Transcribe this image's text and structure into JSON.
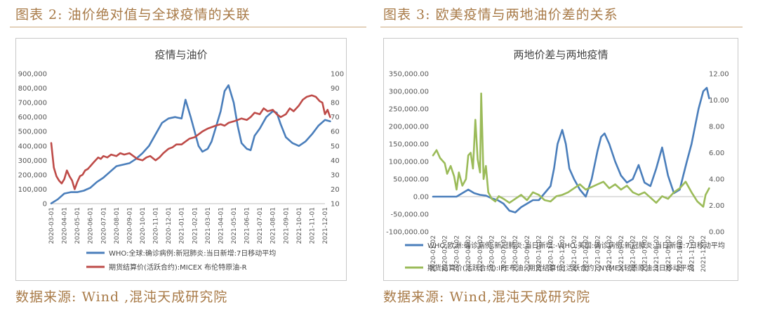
{
  "left": {
    "figure_title": "图表 2: 油价绝对值与全球疫情的关联",
    "source": "数据来源: Wind ,混沌天成研究院"
  },
  "right": {
    "figure_title": "图表 3: 欧美疫情与两地油价差的关系",
    "source": "数据来源: Wind,混沌天成研究院"
  },
  "colors": {
    "blue": "#4a7ebb",
    "red": "#be4b48",
    "green": "#9bbb59",
    "accent": "#a87a47"
  },
  "chart_data": [
    {
      "type": "line",
      "title": "疫情与油价",
      "y_left": {
        "ylim": [
          0,
          900000
        ],
        "ticks": [
          "0",
          "100,000",
          "200,000",
          "300,000",
          "400,000",
          "500,000",
          "600,000",
          "700,000",
          "800,000",
          "900,000"
        ]
      },
      "y_right": {
        "ylim": [
          10,
          100
        ],
        "ticks": [
          "10",
          "20",
          "30",
          "40",
          "50",
          "60",
          "70",
          "80",
          "90",
          "100"
        ]
      },
      "x_ticks": [
        "2020-03-01",
        "2020-04-01",
        "2020-05-01",
        "2020-06-01",
        "2020-07-01",
        "2020-08-01",
        "2020-09-01",
        "2020-10-01",
        "2020-11-01",
        "2020-12-01",
        "2021-01-01",
        "2021-02-01",
        "2021-03-01",
        "2021-04-01",
        "2021-05-01",
        "2021-06-01",
        "2021-07-01",
        "2021-08-01",
        "2021-09-01",
        "2021-10-01",
        "2021-11-01",
        "2021-12-01"
      ],
      "grid": false,
      "legend_position": "bottom",
      "series": [
        {
          "name": "WHO:全球:确诊病例:新冠肺炎:当日新增:7日移动平均",
          "axis": "left",
          "color": "#4a7ebb",
          "x": [
            0,
            0.5,
            1,
            1.5,
            2,
            2.5,
            3,
            3.5,
            4,
            4.5,
            5,
            5.5,
            6,
            6.5,
            7,
            7.5,
            8,
            8.5,
            9,
            9.5,
            10,
            10.3,
            10.7,
            11,
            11.3,
            11.6,
            12,
            12.3,
            12.6,
            13,
            13.3,
            13.6,
            14,
            14.3,
            14.6,
            15,
            15.3,
            15.6,
            16,
            16.5,
            17,
            17.3,
            17.6,
            18,
            18.5,
            19,
            19.5,
            20,
            20.5,
            21,
            21.4
          ],
          "values": [
            2000,
            30000,
            70000,
            80000,
            80000,
            90000,
            110000,
            150000,
            180000,
            220000,
            260000,
            270000,
            280000,
            310000,
            350000,
            400000,
            480000,
            560000,
            590000,
            600000,
            590000,
            720000,
            600000,
            500000,
            400000,
            360000,
            380000,
            430000,
            520000,
            640000,
            780000,
            820000,
            700000,
            540000,
            420000,
            380000,
            370000,
            470000,
            520000,
            600000,
            640000,
            630000,
            550000,
            460000,
            420000,
            400000,
            430000,
            480000,
            540000,
            580000,
            570000
          ]
        },
        {
          "name": "期货结算价(活跃合约):MICEX 布伦特原油-R",
          "axis": "right",
          "color": "#be4b48",
          "x": [
            0,
            0.2,
            0.4,
            0.6,
            0.8,
            1,
            1.2,
            1.4,
            1.6,
            1.8,
            2,
            2.2,
            2.4,
            2.6,
            2.8,
            3,
            3.2,
            3.4,
            3.6,
            3.8,
            4,
            4.3,
            4.6,
            5,
            5.3,
            5.6,
            6,
            6.3,
            6.6,
            7,
            7.3,
            7.6,
            8,
            8.3,
            8.6,
            9,
            9.3,
            9.6,
            10,
            10.3,
            10.6,
            11,
            11.3,
            11.6,
            12,
            12.3,
            12.6,
            13,
            13.3,
            13.6,
            14,
            14.3,
            14.6,
            15,
            15.3,
            15.6,
            16,
            16.3,
            16.6,
            17,
            17.3,
            17.6,
            18,
            18.3,
            18.6,
            19,
            19.3,
            19.6,
            20,
            20.3,
            20.6,
            20.8,
            21,
            21.2,
            21.4
          ],
          "values": [
            52,
            35,
            29,
            26,
            24,
            27,
            33,
            29,
            26,
            20,
            25,
            29,
            30,
            33,
            34,
            36,
            38,
            40,
            42,
            41,
            43,
            42,
            44,
            43,
            45,
            44,
            45,
            43,
            41,
            40,
            42,
            43,
            40,
            42,
            45,
            48,
            49,
            51,
            51,
            53,
            55,
            56,
            58,
            60,
            62,
            63,
            64,
            65,
            64,
            66,
            67,
            68,
            69,
            68,
            70,
            73,
            72,
            76,
            74,
            75,
            72,
            70,
            72,
            76,
            74,
            78,
            82,
            84,
            85,
            84,
            81,
            80,
            72,
            75,
            70
          ]
        }
      ]
    },
    {
      "type": "line",
      "title": "两地价差与两地疫情",
      "y_left": {
        "ylim": [
          -100000,
          350000
        ],
        "ticks": [
          "-100,000.00",
          "-50,000.00",
          "0.00",
          "50,000.00",
          "100,000.00",
          "150,000.00",
          "200,000.00",
          "250,000.00",
          "300,000.00",
          "350,000.00"
        ]
      },
      "y_right": {
        "ylim": [
          0,
          12
        ],
        "ticks": [
          "0.00",
          "2.00",
          "4.00",
          "6.00",
          "8.00",
          "10.00",
          "12.00"
        ]
      },
      "x_ticks": [
        "2020-01-02",
        "2020-02-02",
        "2020-03-02",
        "2020-04-02",
        "2020-05-02",
        "2020-06-02",
        "2020-07-02",
        "2020-08-02",
        "2020-09-02",
        "2020-10-02",
        "2020-11-02",
        "2020-12-02",
        "2021-01-02",
        "2021-02-02",
        "2021-03-02",
        "2021-04-02",
        "2021-05-02",
        "2021-06-02",
        "2021-07-02",
        "2021-08-02",
        "2021-09-02",
        "2021-10-02",
        "2021-11-02",
        "2021-12-02"
      ],
      "grid": false,
      "legend_position": "bottom",
      "series": [
        {
          "name": "WHO:欧洲:确诊病例:新冠肺炎:当日新增:-WHO:美国:确诊病例:新冠肺炎:当日新增:7日移动平均",
          "axis": "left",
          "color": "#4a7ebb",
          "x": [
            0,
            1,
            2,
            2.5,
            3,
            3.5,
            4,
            4.5,
            5,
            5.5,
            6,
            6.5,
            7,
            7.5,
            8,
            8.5,
            9,
            9.5,
            10,
            10.3,
            10.6,
            11,
            11.3,
            11.6,
            12,
            12.5,
            13,
            13.5,
            14,
            14.3,
            14.6,
            15,
            15.5,
            16,
            16.5,
            17,
            17.5,
            18,
            18.5,
            19,
            19.5,
            20,
            20.5,
            21,
            21.3,
            21.6,
            22,
            22.3,
            22.6,
            23,
            23.3,
            23.5
          ],
          "values": [
            0,
            0,
            0,
            10000,
            20000,
            10000,
            5000,
            3000,
            -5000,
            -10000,
            -20000,
            -40000,
            -45000,
            -30000,
            -20000,
            -10000,
            -10000,
            10000,
            30000,
            80000,
            150000,
            190000,
            150000,
            80000,
            50000,
            20000,
            0,
            50000,
            130000,
            170000,
            180000,
            150000,
            100000,
            60000,
            40000,
            50000,
            90000,
            40000,
            30000,
            80000,
            140000,
            60000,
            10000,
            20000,
            60000,
            100000,
            150000,
            200000,
            250000,
            300000,
            310000,
            280000
          ]
        },
        {
          "name": "期货结算价(活跃合约):IPE布油:-期货结算价(活跃合约):NYMEX轻质原油:3日移动平均",
          "axis": "right",
          "color": "#9bbb59",
          "x": [
            0,
            0.3,
            0.6,
            1,
            1.2,
            1.5,
            1.8,
            2,
            2.2,
            2.5,
            2.8,
            3,
            3.2,
            3.4,
            3.6,
            3.8,
            4,
            4.1,
            4.3,
            4.5,
            4.7,
            5,
            5.3,
            5.6,
            6,
            6.5,
            7,
            7.5,
            8,
            8.5,
            9,
            9.5,
            10,
            10.5,
            11,
            11.5,
            12,
            12.5,
            13,
            13.5,
            14,
            14.5,
            15,
            15.5,
            16,
            16.5,
            17,
            17.5,
            18,
            18.5,
            19,
            19.5,
            20,
            20.5,
            21,
            21.5,
            22,
            22.5,
            23,
            23.2,
            23.5
          ],
          "values": [
            5.8,
            6.2,
            5.6,
            5.2,
            4.4,
            5.0,
            4.2,
            3.2,
            4.5,
            3.5,
            4.0,
            5.8,
            6.0,
            4.8,
            8.5,
            5.5,
            4.5,
            10.5,
            4.0,
            5.0,
            3.0,
            2.5,
            2.3,
            2.7,
            2.5,
            2.2,
            2.5,
            2.8,
            2.4,
            3.0,
            2.8,
            2.4,
            2.3,
            2.7,
            2.8,
            3.0,
            3.3,
            3.6,
            3.2,
            3.4,
            3.6,
            3.8,
            3.3,
            3.6,
            3.2,
            3.5,
            3.0,
            2.8,
            3.0,
            2.6,
            2.2,
            2.7,
            2.5,
            3.0,
            3.3,
            3.8,
            3.0,
            2.3,
            1.9,
            2.8,
            3.3
          ]
        }
      ]
    }
  ]
}
